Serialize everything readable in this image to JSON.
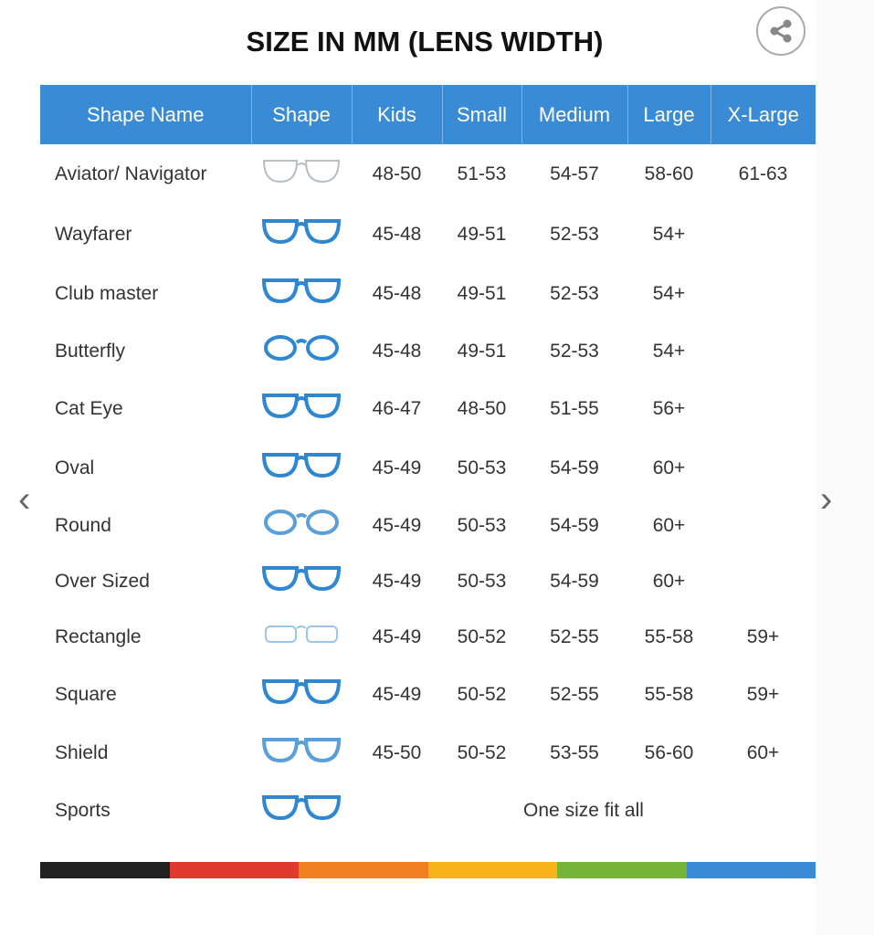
{
  "title": "SIZE IN MM (LENS WIDTH)",
  "headers": [
    "Shape Name",
    "Shape",
    "Kids",
    "Small",
    "Medium",
    "Large",
    "X-Large"
  ],
  "rows": [
    {
      "name": "Aviator/ Navigator",
      "icon": "aviator-glasses-icon",
      "color": "#b8bfc4",
      "sizes": [
        "48-50",
        "51-53",
        "54-57",
        "58-60",
        "61-63"
      ]
    },
    {
      "name": "Wayfarer",
      "icon": "wayfarer-glasses-icon",
      "color": "#2f86d1",
      "sizes": [
        "45-48",
        "49-51",
        "52-53",
        "54+",
        ""
      ]
    },
    {
      "name": "Club master",
      "icon": "clubmaster-glasses-icon",
      "color": "#2f86d1",
      "sizes": [
        "45-48",
        "49-51",
        "52-53",
        "54+",
        ""
      ]
    },
    {
      "name": "Butterfly",
      "icon": "butterfly-glasses-icon",
      "color": "#2f86d1",
      "sizes": [
        "45-48",
        "49-51",
        "52-53",
        "54+",
        ""
      ]
    },
    {
      "name": "Cat Eye",
      "icon": "cat-eye-glasses-icon",
      "color": "#2f86d1",
      "sizes": [
        "46-47",
        "48-50",
        "51-55",
        "56+",
        ""
      ]
    },
    {
      "name": "Oval",
      "icon": "oval-glasses-icon",
      "color": "#2f86d1",
      "sizes": [
        "45-49",
        "50-53",
        "54-59",
        "60+",
        ""
      ]
    },
    {
      "name": "Round",
      "icon": "round-glasses-icon",
      "color": "#5a9fd8",
      "sizes": [
        "45-49",
        "50-53",
        "54-59",
        "60+",
        ""
      ]
    },
    {
      "name": "Over Sized",
      "icon": "oversized-glasses-icon",
      "color": "#2f86d1",
      "sizes": [
        "45-49",
        "50-53",
        "54-59",
        "60+",
        ""
      ]
    },
    {
      "name": "Rectangle",
      "icon": "rectangle-glasses-icon",
      "color": "#9cc4e6",
      "sizes": [
        "45-49",
        "50-52",
        "52-55",
        "55-58",
        "59+"
      ]
    },
    {
      "name": "Square",
      "icon": "square-glasses-icon",
      "color": "#2f86d1",
      "sizes": [
        "45-49",
        "50-52",
        "52-55",
        "55-58",
        "59+"
      ]
    },
    {
      "name": "Shield",
      "icon": "shield-glasses-icon",
      "color": "#5a9fd8",
      "sizes": [
        "45-50",
        "50-52",
        "53-55",
        "56-60",
        "60+"
      ]
    },
    {
      "name": "Sports",
      "icon": "sports-glasses-icon",
      "color": "#2f86d1",
      "note": "One size fit all"
    }
  ],
  "color_bar": [
    "#222222",
    "#e03a2e",
    "#f07f22",
    "#f8b319",
    "#76b43a",
    "#3a8bd6"
  ],
  "header_color": "#3a8bd6"
}
